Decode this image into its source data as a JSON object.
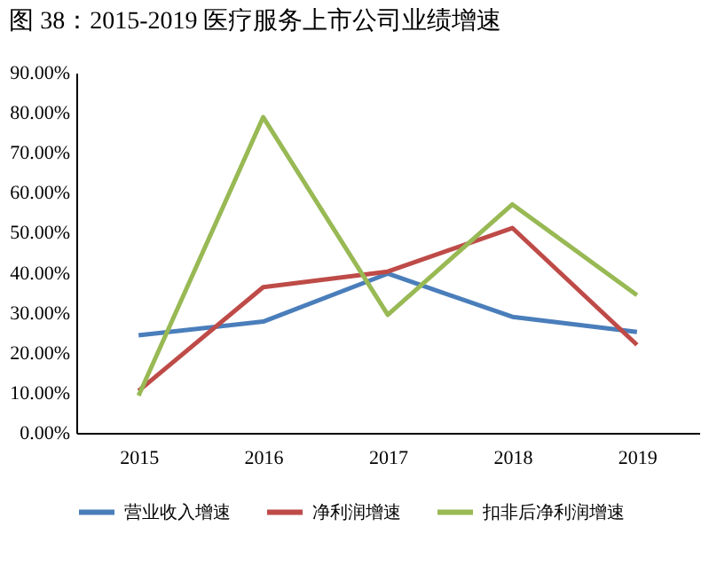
{
  "chart_data": {
    "type": "line",
    "title": "图 38：2015-2019 医疗服务上市公司业绩增速",
    "categories": [
      "2015",
      "2016",
      "2017",
      "2018",
      "2019"
    ],
    "series": [
      {
        "name": "营业收入增速",
        "color": "#4a7ebb",
        "values": [
          24.4,
          27.8,
          39.8,
          29.0,
          25.2
        ]
      },
      {
        "name": "净利润增速",
        "color": "#be4b48",
        "values": [
          10.5,
          36.4,
          40.3,
          51.2,
          22.0
        ]
      },
      {
        "name": "扣非后净利润增速",
        "color": "#98b954",
        "values": [
          9.3,
          78.9,
          29.5,
          57.1,
          34.4
        ]
      }
    ],
    "ylim": [
      0,
      90
    ],
    "yticks": [
      {
        "value": 0,
        "label": "0.00%"
      },
      {
        "value": 10,
        "label": "10.00%"
      },
      {
        "value": 20,
        "label": "20.00%"
      },
      {
        "value": 30,
        "label": "30.00%"
      },
      {
        "value": 40,
        "label": "40.00%"
      },
      {
        "value": 50,
        "label": "50.00%"
      },
      {
        "value": 60,
        "label": "60.00%"
      },
      {
        "value": 70,
        "label": "70.00%"
      },
      {
        "value": 80,
        "label": "80.00%"
      },
      {
        "value": 90,
        "label": "90.00%"
      }
    ],
    "grid": false,
    "legend": "bottom",
    "marker": "none",
    "line_style": "solid"
  }
}
